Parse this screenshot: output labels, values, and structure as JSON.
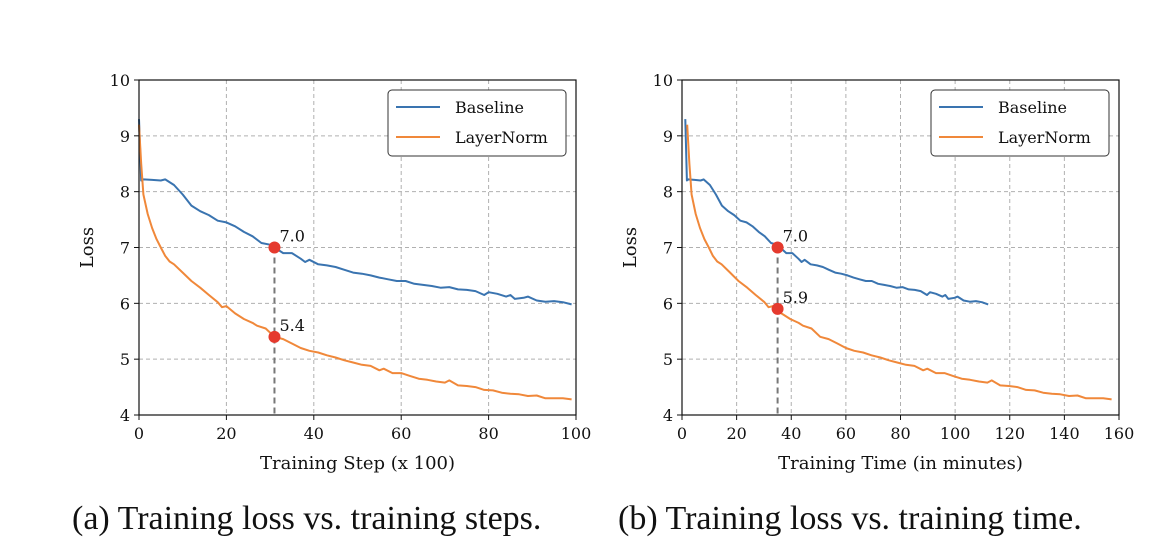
{
  "colors": {
    "baseline": "#3a74b0",
    "layernorm": "#f0883a",
    "marker": "#e53a2e",
    "grid": "#b0b0b0",
    "guide": "#777777"
  },
  "captions": {
    "a": "(a) Training loss vs. training steps.",
    "b": "(b) Training loss vs. training time."
  },
  "chart_data": [
    {
      "type": "line",
      "title": "",
      "xlabel": "Training Step (x 100)",
      "ylabel": "Loss",
      "xlim": [
        0,
        100
      ],
      "ylim": [
        4,
        10
      ],
      "xticks": [
        0,
        20,
        40,
        60,
        80,
        100
      ],
      "yticks": [
        4,
        5,
        6,
        7,
        8,
        9,
        10
      ],
      "grid": true,
      "legend": "top-right",
      "series": [
        {
          "name": "Baseline",
          "color_key": "baseline",
          "x": [
            0,
            0.5,
            1,
            3,
            5,
            6,
            8,
            10,
            12,
            14,
            16,
            18,
            20,
            22,
            24,
            26,
            28,
            30,
            31,
            33,
            35,
            37,
            38,
            39,
            41,
            43,
            45,
            47,
            49,
            51,
            53,
            55,
            57,
            59,
            61,
            63,
            65,
            67,
            69,
            71,
            73,
            75,
            77,
            79,
            80,
            82,
            84,
            85,
            86,
            88,
            89,
            91,
            93,
            95,
            97,
            99
          ],
          "y": [
            9.3,
            8.2,
            8.22,
            8.21,
            8.2,
            8.22,
            8.12,
            7.95,
            7.75,
            7.65,
            7.58,
            7.48,
            7.45,
            7.38,
            7.28,
            7.2,
            7.08,
            7.05,
            7.0,
            6.9,
            6.9,
            6.8,
            6.74,
            6.78,
            6.7,
            6.68,
            6.65,
            6.6,
            6.55,
            6.53,
            6.5,
            6.46,
            6.43,
            6.4,
            6.4,
            6.35,
            6.33,
            6.31,
            6.28,
            6.29,
            6.25,
            6.24,
            6.22,
            6.15,
            6.2,
            6.17,
            6.12,
            6.15,
            6.08,
            6.1,
            6.12,
            6.05,
            6.03,
            6.04,
            6.02,
            5.98
          ]
        },
        {
          "name": "LayerNorm",
          "color_key": "layernorm",
          "x": [
            0,
            0.5,
            1,
            2,
            3,
            4,
            5,
            6,
            7,
            8,
            10,
            12,
            14,
            16,
            18,
            19,
            20,
            22,
            24,
            26,
            27,
            29,
            31,
            33,
            35,
            37,
            39,
            41,
            43,
            45,
            47,
            49,
            51,
            53,
            55,
            56,
            58,
            60,
            62,
            64,
            66,
            68,
            70,
            71,
            73,
            75,
            77,
            79,
            81,
            83,
            85,
            87,
            89,
            91,
            93,
            95,
            97,
            99
          ],
          "y": [
            9.2,
            8.5,
            7.95,
            7.6,
            7.35,
            7.15,
            7.0,
            6.85,
            6.75,
            6.7,
            6.55,
            6.4,
            6.28,
            6.15,
            6.02,
            5.93,
            5.95,
            5.82,
            5.72,
            5.65,
            5.6,
            5.55,
            5.4,
            5.36,
            5.28,
            5.2,
            5.15,
            5.12,
            5.07,
            5.03,
            4.98,
            4.94,
            4.9,
            4.88,
            4.8,
            4.83,
            4.75,
            4.75,
            4.7,
            4.65,
            4.63,
            4.6,
            4.58,
            4.62,
            4.53,
            4.52,
            4.5,
            4.45,
            4.44,
            4.4,
            4.38,
            4.37,
            4.34,
            4.35,
            4.3,
            4.3,
            4.3,
            4.28
          ]
        }
      ],
      "annotations": [
        {
          "x": 31,
          "y": 7.0,
          "text": "7.0"
        },
        {
          "x": 31,
          "y": 5.4,
          "text": "5.4"
        }
      ],
      "guide_x": 31
    },
    {
      "type": "line",
      "title": "",
      "xlabel": "Training Time (in minutes)",
      "ylabel": "Loss",
      "xlim": [
        0,
        160
      ],
      "ylim": [
        4,
        10
      ],
      "xticks": [
        0,
        20,
        40,
        60,
        80,
        100,
        120,
        140,
        160
      ],
      "yticks": [
        4,
        5,
        6,
        7,
        8,
        9,
        10
      ],
      "grid": true,
      "legend": "top-right",
      "series": [
        {
          "name": "Baseline",
          "color_key": "baseline",
          "x": [
            1.2,
            1.8,
            2.3,
            4.6,
            6.8,
            7.9,
            10.2,
            12.4,
            14.6,
            16.9,
            19.1,
            21.4,
            23.6,
            25.8,
            28.1,
            30.3,
            32.6,
            34.8,
            35.9,
            38.2,
            40.4,
            42.6,
            43.8,
            44.9,
            47.1,
            49.4,
            51.6,
            53.8,
            56.1,
            58.3,
            60.6,
            62.8,
            65.0,
            67.3,
            69.5,
            71.8,
            74.0,
            76.2,
            78.5,
            80.7,
            83.0,
            85.2,
            87.4,
            89.7,
            90.8,
            93.0,
            95.3,
            96.4,
            97.5,
            99.8,
            100.9,
            103.1,
            105.4,
            107.6,
            109.8,
            112.1
          ],
          "y": [
            9.3,
            8.2,
            8.22,
            8.21,
            8.2,
            8.22,
            8.12,
            7.95,
            7.75,
            7.65,
            7.58,
            7.48,
            7.45,
            7.38,
            7.28,
            7.2,
            7.08,
            7.05,
            7.0,
            6.9,
            6.9,
            6.8,
            6.74,
            6.78,
            6.7,
            6.68,
            6.65,
            6.6,
            6.55,
            6.53,
            6.5,
            6.46,
            6.43,
            6.4,
            6.4,
            6.35,
            6.33,
            6.31,
            6.28,
            6.29,
            6.25,
            6.24,
            6.22,
            6.15,
            6.2,
            6.17,
            6.12,
            6.15,
            6.08,
            6.1,
            6.12,
            6.05,
            6.03,
            6.04,
            6.02,
            5.98
          ]
        },
        {
          "name": "LayerNorm",
          "color_key": "layernorm",
          "x": [
            1.9,
            2.7,
            3.5,
            5.0,
            6.6,
            8.2,
            9.8,
            11.3,
            12.9,
            14.5,
            17.6,
            20.7,
            23.9,
            27.0,
            30.2,
            31.7,
            33.3,
            36.4,
            39.6,
            42.7,
            44.3,
            47.4,
            50.6,
            53.7,
            56.9,
            60.0,
            63.1,
            66.3,
            69.4,
            72.6,
            75.7,
            78.8,
            82.0,
            85.1,
            88.3,
            89.8,
            93.0,
            96.1,
            99.2,
            102.4,
            105.5,
            108.7,
            111.8,
            113.4,
            116.5,
            119.7,
            122.8,
            126.0,
            129.1,
            132.2,
            135.4,
            138.5,
            141.7,
            144.8,
            147.9,
            151.1,
            154.2,
            157.3
          ],
          "y": [
            9.2,
            8.5,
            7.95,
            7.6,
            7.35,
            7.15,
            7.0,
            6.85,
            6.75,
            6.7,
            6.55,
            6.4,
            6.28,
            6.15,
            6.02,
            5.93,
            5.95,
            5.82,
            5.72,
            5.65,
            5.6,
            5.55,
            5.4,
            5.36,
            5.28,
            5.2,
            5.15,
            5.12,
            5.07,
            5.03,
            4.98,
            4.94,
            4.9,
            4.88,
            4.8,
            4.83,
            4.75,
            4.75,
            4.7,
            4.65,
            4.63,
            4.6,
            4.58,
            4.62,
            4.53,
            4.52,
            4.5,
            4.45,
            4.44,
            4.4,
            4.38,
            4.37,
            4.34,
            4.35,
            4.3,
            4.3,
            4.3,
            4.28
          ]
        }
      ],
      "annotations": [
        {
          "x": 35,
          "y": 7.0,
          "text": "7.0"
        },
        {
          "x": 35,
          "y": 5.9,
          "text": "5.9"
        }
      ],
      "guide_x": 35
    }
  ]
}
